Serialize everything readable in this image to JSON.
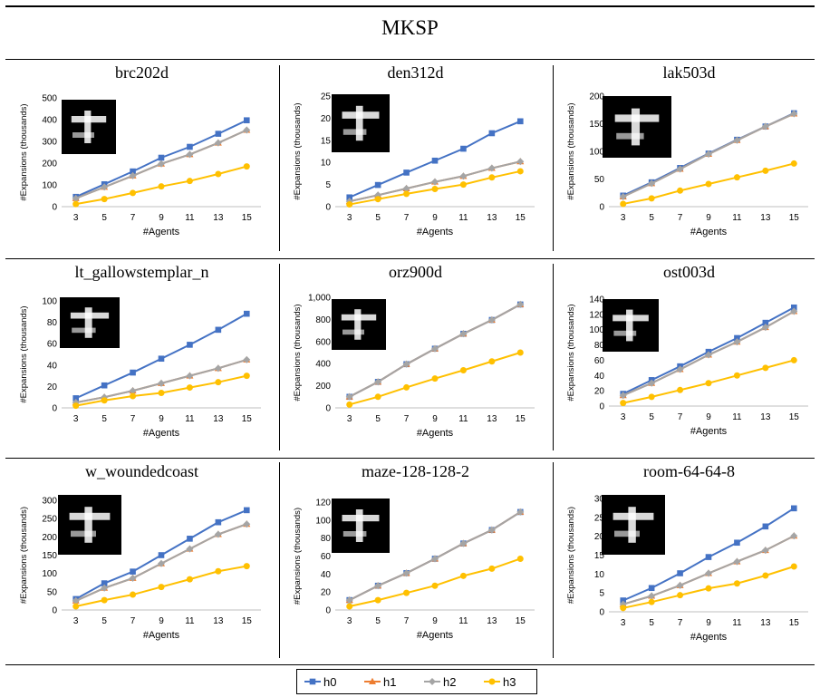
{
  "figure_title": "MKSP",
  "colors": {
    "h0": "#4472C4",
    "h1": "#ED7D31",
    "h2": "#A5A5A5",
    "h3": "#FFC000"
  },
  "legend": [
    "h0",
    "h1",
    "h2",
    "h3"
  ],
  "chart_data": [
    {
      "type": "line",
      "title": "brc202d",
      "xlabel": "#Agents",
      "ylabel": "#Expansions (thousands)",
      "categories": [
        "3",
        "5",
        "7",
        "9",
        "11",
        "13",
        "15"
      ],
      "ylim": [
        0,
        500
      ],
      "yticks": [
        "0",
        "100",
        "200",
        "300",
        "400",
        "500"
      ],
      "series": [
        {
          "name": "h0",
          "values": [
            45,
            103,
            162,
            225,
            275,
            335,
            397
          ]
        },
        {
          "name": "h1",
          "values": [
            38,
            90,
            142,
            197,
            240,
            293,
            352
          ]
        },
        {
          "name": "h2",
          "values": [
            38,
            90,
            142,
            197,
            240,
            293,
            352
          ]
        },
        {
          "name": "h3",
          "values": [
            12,
            35,
            63,
            93,
            118,
            150,
            185
          ]
        }
      ]
    },
    {
      "type": "line",
      "title": "den312d",
      "xlabel": "#Agents",
      "ylabel": "#Expansions (thousands)",
      "categories": [
        "3",
        "5",
        "7",
        "9",
        "11",
        "13",
        "15"
      ],
      "ylim": [
        0,
        25
      ],
      "yticks": [
        "0",
        "5",
        "10",
        "15",
        "20",
        "25"
      ],
      "series": [
        {
          "name": "h0",
          "values": [
            2.1,
            4.9,
            7.7,
            10.4,
            13.1,
            16.6,
            19.3
          ]
        },
        {
          "name": "h1",
          "values": [
            1.2,
            2.6,
            4.1,
            5.6,
            6.9,
            8.7,
            10.2
          ]
        },
        {
          "name": "h2",
          "values": [
            1.2,
            2.6,
            4.1,
            5.6,
            6.9,
            8.7,
            10.2
          ]
        },
        {
          "name": "h3",
          "values": [
            0.5,
            1.7,
            2.9,
            4.0,
            5.0,
            6.6,
            8.0
          ]
        }
      ]
    },
    {
      "type": "line",
      "title": "lak503d",
      "xlabel": "#Agents",
      "ylabel": "#Expansions (thousands)",
      "categories": [
        "3",
        "5",
        "7",
        "9",
        "11",
        "13",
        "15"
      ],
      "ylim": [
        0,
        200
      ],
      "yticks": [
        "0",
        "50",
        "100",
        "150",
        "200"
      ],
      "series": [
        {
          "name": "h0",
          "values": [
            20,
            44,
            70,
            96,
            121,
            145,
            169
          ]
        },
        {
          "name": "h1",
          "values": [
            18,
            42,
            68,
            95,
            120,
            145,
            168
          ]
        },
        {
          "name": "h2",
          "values": [
            18,
            42,
            68,
            95,
            120,
            145,
            168
          ]
        },
        {
          "name": "h3",
          "values": [
            5,
            15,
            29,
            41,
            53,
            65,
            78
          ]
        }
      ]
    },
    {
      "type": "line",
      "title": "lt_gallowstemplar_n",
      "xlabel": "#Agents",
      "ylabel": "#Expansions (thousands)",
      "categories": [
        "3",
        "5",
        "7",
        "9",
        "11",
        "13",
        "15"
      ],
      "ylim": [
        0,
        100
      ],
      "yticks": [
        "0",
        "20",
        "40",
        "60",
        "80",
        "100"
      ],
      "series": [
        {
          "name": "h0",
          "values": [
            9,
            21,
            33,
            46,
            59,
            73,
            88
          ]
        },
        {
          "name": "h1",
          "values": [
            5,
            10,
            16,
            23,
            30,
            37,
            45
          ]
        },
        {
          "name": "h2",
          "values": [
            5,
            10,
            16,
            23,
            30,
            37,
            45
          ]
        },
        {
          "name": "h3",
          "values": [
            2,
            7,
            11,
            14,
            19,
            24,
            30
          ]
        }
      ]
    },
    {
      "type": "line",
      "title": "orz900d",
      "xlabel": "#Agents",
      "ylabel": "#Expansions (thousands)",
      "categories": [
        "3",
        "5",
        "7",
        "9",
        "11",
        "13",
        "15"
      ],
      "ylim": [
        0,
        1000
      ],
      "yticks": [
        "0",
        "200",
        "400",
        "600",
        "800",
        "1,000"
      ],
      "series": [
        {
          "name": "h0",
          "values": [
            100,
            235,
            395,
            535,
            670,
            795,
            935
          ]
        },
        {
          "name": "h1",
          "values": [
            100,
            235,
            395,
            535,
            670,
            795,
            935
          ]
        },
        {
          "name": "h2",
          "values": [
            100,
            235,
            395,
            535,
            670,
            795,
            935
          ]
        },
        {
          "name": "h3",
          "values": [
            30,
            100,
            185,
            265,
            340,
            420,
            500
          ]
        }
      ]
    },
    {
      "type": "line",
      "title": "ost003d",
      "xlabel": "#Agents",
      "ylabel": "#Expansions (thousands)",
      "categories": [
        "3",
        "5",
        "7",
        "9",
        "11",
        "13",
        "15"
      ],
      "ylim": [
        0,
        140
      ],
      "yticks": [
        "0",
        "20",
        "40",
        "60",
        "80",
        "100",
        "120",
        "140"
      ],
      "series": [
        {
          "name": "h0",
          "values": [
            16,
            34,
            52,
            71,
            89,
            109,
            129
          ]
        },
        {
          "name": "h1",
          "values": [
            14,
            30,
            48,
            67,
            84,
            103,
            124
          ]
        },
        {
          "name": "h2",
          "values": [
            14,
            30,
            48,
            67,
            84,
            103,
            124
          ]
        },
        {
          "name": "h3",
          "values": [
            4,
            12,
            21,
            30,
            40,
            50,
            60
          ]
        }
      ]
    },
    {
      "type": "line",
      "title": "w_woundedcoast",
      "xlabel": "#Agents",
      "ylabel": "#Expansions (thousands)",
      "categories": [
        "3",
        "5",
        "7",
        "9",
        "11",
        "13",
        "15"
      ],
      "ylim": [
        0,
        300
      ],
      "yticks": [
        "0",
        "50",
        "100",
        "150",
        "200",
        "250",
        "300"
      ],
      "series": [
        {
          "name": "h0",
          "values": [
            30,
            73,
            105,
            150,
            195,
            240,
            273
          ]
        },
        {
          "name": "h1",
          "values": [
            25,
            60,
            87,
            127,
            167,
            207,
            235
          ]
        },
        {
          "name": "h2",
          "values": [
            25,
            60,
            87,
            127,
            167,
            207,
            235
          ]
        },
        {
          "name": "h3",
          "values": [
            10,
            27,
            42,
            63,
            84,
            106,
            120
          ]
        }
      ]
    },
    {
      "type": "line",
      "title": "maze-128-128-2",
      "xlabel": "#Agents",
      "ylabel": "#Expansions (thousands)",
      "categories": [
        "3",
        "5",
        "7",
        "9",
        "11",
        "13",
        "15"
      ],
      "ylim": [
        0,
        120
      ],
      "yticks": [
        "0",
        "20",
        "40",
        "60",
        "80",
        "100",
        "120"
      ],
      "series": [
        {
          "name": "h0",
          "values": [
            11,
            27,
            41,
            57,
            74,
            89,
            109
          ]
        },
        {
          "name": "h1",
          "values": [
            11,
            27,
            41,
            57,
            74,
            89,
            109
          ]
        },
        {
          "name": "h2",
          "values": [
            11,
            27,
            41,
            57,
            74,
            89,
            109
          ]
        },
        {
          "name": "h3",
          "values": [
            4,
            11,
            19,
            27,
            38,
            46,
            57
          ]
        }
      ]
    },
    {
      "type": "line",
      "title": "room-64-64-8",
      "xlabel": "#Agents",
      "ylabel": "#Expansions (thousands)",
      "categories": [
        "3",
        "5",
        "7",
        "9",
        "11",
        "13",
        "15"
      ],
      "ylim": [
        0,
        30
      ],
      "yticks": [
        "0",
        "5",
        "10",
        "15",
        "20",
        "25",
        "30"
      ],
      "series": [
        {
          "name": "h0",
          "values": [
            3.0,
            6.3,
            10.2,
            14.5,
            18.3,
            22.6,
            27.4
          ]
        },
        {
          "name": "h1",
          "values": [
            2.0,
            4.2,
            7.0,
            10.2,
            13.3,
            16.3,
            20.1
          ]
        },
        {
          "name": "h2",
          "values": [
            2.0,
            4.2,
            7.0,
            10.2,
            13.3,
            16.3,
            20.1
          ]
        },
        {
          "name": "h3",
          "values": [
            1.0,
            2.6,
            4.4,
            6.2,
            7.5,
            9.6,
            12.0
          ]
        }
      ]
    }
  ]
}
